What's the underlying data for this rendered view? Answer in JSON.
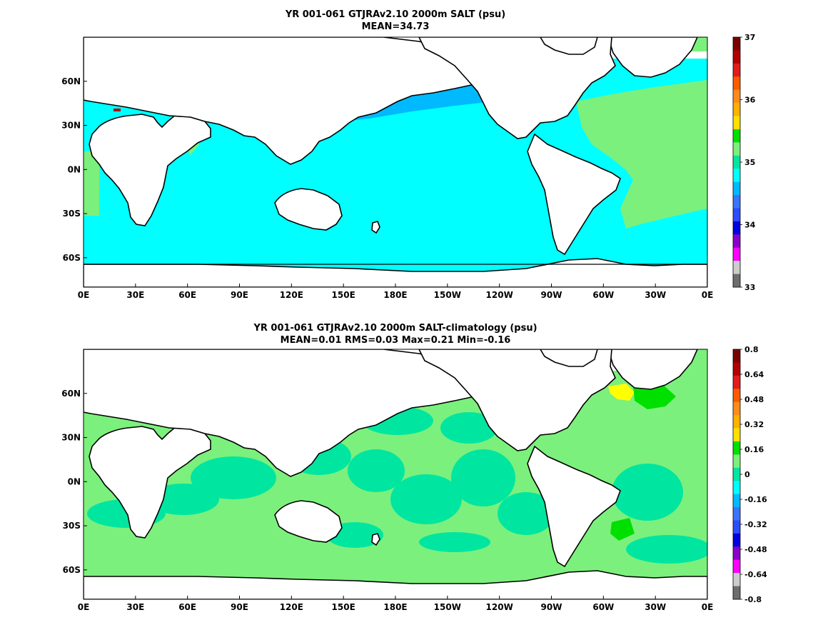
{
  "panels": [
    {
      "id": "top",
      "title": "YR 001-061 GTJRAv2.10 2000m SALT (psu)",
      "subtitle": "MEAN=34.73",
      "colorbar": {
        "labels": [
          "37",
          "36",
          "35",
          "34",
          "33"
        ],
        "colors": [
          "#7a0000",
          "#b30000",
          "#e21b1b",
          "#ff5a00",
          "#ff8c1a",
          "#ffb000",
          "#ffe000",
          "#00e000",
          "#7cf07c",
          "#00e6a0",
          "#00ffff",
          "#00b9ff",
          "#3a74ff",
          "#2a4dff",
          "#0000e0",
          "#8a00c8",
          "#ff00ff",
          "#cccccc",
          "#6e6e6e"
        ]
      },
      "fields": {
        "ocean_fill": "#00ffff",
        "north_pacific": "#00b9ff",
        "atlantic": "#7cf07c"
      }
    },
    {
      "id": "bottom",
      "title": "YR 001-061 GTJRAv2.10 2000m SALT-climatology (psu)",
      "subtitle": "MEAN=0.01   RMS=0.03   Max=0.21   Min=-0.16",
      "colorbar": {
        "labels": [
          "0.8",
          "0.64",
          "0.48",
          "0.32",
          "0.16",
          "0",
          "-0.16",
          "-0.32",
          "-0.48",
          "-0.64",
          "-0.8"
        ],
        "colors": [
          "#7a0000",
          "#b30000",
          "#e21b1b",
          "#ff5a00",
          "#ff8c1a",
          "#ffb000",
          "#ffe000",
          "#00e000",
          "#7cf07c",
          "#00e6a0",
          "#00ffff",
          "#00b9ff",
          "#3a74ff",
          "#2a4dff",
          "#0000e0",
          "#8a00c8",
          "#ff00ff",
          "#cccccc",
          "#6e6e6e"
        ]
      },
      "fields": {
        "ocean_fill": "#7cf07c",
        "anomaly_patch": "#00e6a0",
        "highlight_yellow": "#ffff00",
        "highlight_green": "#00e000"
      }
    }
  ],
  "axes": {
    "lon_ticks": [
      "0E",
      "30E",
      "60E",
      "90E",
      "120E",
      "150E",
      "180E",
      "150W",
      "120W",
      "90W",
      "60W",
      "30W",
      "0E"
    ],
    "lat_ticks": [
      "60N",
      "30N",
      "0N",
      "30S",
      "60S"
    ]
  }
}
